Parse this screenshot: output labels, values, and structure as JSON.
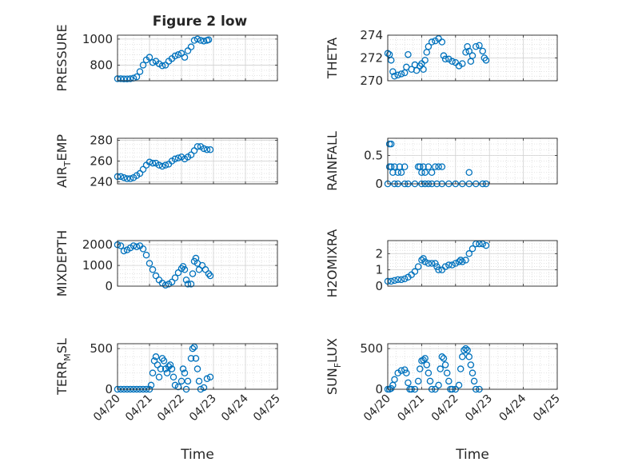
{
  "figure": {
    "title": "Figure 2 low",
    "marker_color": "#0072BD",
    "axis_color": "#262626",
    "grid_color": "#dcdcdc"
  },
  "chart_data": [
    {
      "type": "scatter",
      "id": "pressure",
      "title": "Figure 2 low",
      "ylabel": "PRESSURE",
      "ylabel_parts": [
        [
          "PRESSURE",
          ""
        ]
      ],
      "xlim": [
        "04/20",
        "04/25"
      ],
      "ylim": [
        680,
        1030
      ],
      "yticks": [
        800,
        1000
      ],
      "xticks": [
        "04/20",
        "04/21",
        "04/22",
        "04/23",
        "04/24",
        "04/25"
      ],
      "x_tick_labels_shown": false,
      "grid": true,
      "points": [
        [
          0.0,
          695
        ],
        [
          0.1,
          695
        ],
        [
          0.2,
          694
        ],
        [
          0.3,
          694
        ],
        [
          0.4,
          695
        ],
        [
          0.5,
          700
        ],
        [
          0.6,
          710
        ],
        [
          0.7,
          750
        ],
        [
          0.8,
          800
        ],
        [
          0.9,
          840
        ],
        [
          1.0,
          860
        ],
        [
          1.1,
          820
        ],
        [
          1.2,
          830
        ],
        [
          1.3,
          810
        ],
        [
          1.4,
          795
        ],
        [
          1.5,
          800
        ],
        [
          1.6,
          830
        ],
        [
          1.7,
          850
        ],
        [
          1.8,
          870
        ],
        [
          1.9,
          880
        ],
        [
          2.0,
          890
        ],
        [
          2.1,
          860
        ],
        [
          2.2,
          910
        ],
        [
          2.3,
          940
        ],
        [
          2.4,
          990
        ],
        [
          2.5,
          1000
        ],
        [
          2.6,
          990
        ],
        [
          2.7,
          985
        ],
        [
          2.8,
          990
        ],
        [
          2.85,
          995
        ]
      ]
    },
    {
      "type": "scatter",
      "id": "theta",
      "ylabel": "THETA",
      "ylabel_parts": [
        [
          "THETA",
          ""
        ]
      ],
      "xlim": [
        "04/20",
        "04/25"
      ],
      "ylim": [
        270,
        274
      ],
      "yticks": [
        270,
        272,
        274
      ],
      "xticks": [
        "04/20",
        "04/21",
        "04/22",
        "04/23",
        "04/24",
        "04/25"
      ],
      "x_tick_labels_shown": false,
      "grid": true,
      "points": [
        [
          0.0,
          272.4
        ],
        [
          0.05,
          272.3
        ],
        [
          0.1,
          271.8
        ],
        [
          0.15,
          270.8
        ],
        [
          0.2,
          270.4
        ],
        [
          0.3,
          270.5
        ],
        [
          0.4,
          270.6
        ],
        [
          0.5,
          270.7
        ],
        [
          0.55,
          271.2
        ],
        [
          0.6,
          272.3
        ],
        [
          0.7,
          271.0
        ],
        [
          0.8,
          271.4
        ],
        [
          0.85,
          270.9
        ],
        [
          0.95,
          271.3
        ],
        [
          1.0,
          271.5
        ],
        [
          1.05,
          271.0
        ],
        [
          1.1,
          271.8
        ],
        [
          1.15,
          272.5
        ],
        [
          1.2,
          273.0
        ],
        [
          1.3,
          273.4
        ],
        [
          1.4,
          273.5
        ],
        [
          1.5,
          273.7
        ],
        [
          1.6,
          273.4
        ],
        [
          1.65,
          272.2
        ],
        [
          1.7,
          271.9
        ],
        [
          1.8,
          271.9
        ],
        [
          1.9,
          271.7
        ],
        [
          2.0,
          271.6
        ],
        [
          2.1,
          271.3
        ],
        [
          2.2,
          271.5
        ],
        [
          2.3,
          272.5
        ],
        [
          2.35,
          273.0
        ],
        [
          2.4,
          272.6
        ],
        [
          2.45,
          271.7
        ],
        [
          2.5,
          272.2
        ],
        [
          2.6,
          273.0
        ],
        [
          2.7,
          273.1
        ],
        [
          2.8,
          272.6
        ],
        [
          2.85,
          272.0
        ],
        [
          2.9,
          271.8
        ]
      ]
    },
    {
      "type": "scatter",
      "id": "air_temp",
      "ylabel": "AIR_TEMP",
      "ylabel_parts": [
        [
          "AIR",
          ""
        ],
        [
          "T",
          "sub"
        ],
        [
          "EMP",
          ""
        ]
      ],
      "xlim": [
        "04/20",
        "04/25"
      ],
      "ylim": [
        238,
        282
      ],
      "yticks": [
        240,
        260,
        280
      ],
      "xticks": [
        "04/20",
        "04/21",
        "04/22",
        "04/23",
        "04/24",
        "04/25"
      ],
      "x_tick_labels_shown": false,
      "grid": true,
      "points": [
        [
          0.0,
          245
        ],
        [
          0.1,
          245
        ],
        [
          0.2,
          244
        ],
        [
          0.3,
          243
        ],
        [
          0.4,
          243
        ],
        [
          0.5,
          244
        ],
        [
          0.6,
          246
        ],
        [
          0.7,
          248
        ],
        [
          0.8,
          252
        ],
        [
          0.9,
          256
        ],
        [
          1.0,
          259
        ],
        [
          1.1,
          258
        ],
        [
          1.2,
          258
        ],
        [
          1.3,
          256
        ],
        [
          1.4,
          255
        ],
        [
          1.5,
          256
        ],
        [
          1.6,
          257
        ],
        [
          1.7,
          260
        ],
        [
          1.8,
          262
        ],
        [
          1.9,
          263
        ],
        [
          2.0,
          264
        ],
        [
          2.1,
          262
        ],
        [
          2.2,
          264
        ],
        [
          2.3,
          266
        ],
        [
          2.4,
          270
        ],
        [
          2.5,
          274
        ],
        [
          2.6,
          274
        ],
        [
          2.7,
          272
        ],
        [
          2.8,
          271
        ],
        [
          2.9,
          271
        ]
      ]
    },
    {
      "type": "scatter",
      "id": "rainfall",
      "ylabel": "RAINFALL",
      "ylabel_parts": [
        [
          "RAINFALL",
          ""
        ]
      ],
      "xlim": [
        "04/20",
        "04/25"
      ],
      "ylim": [
        0,
        0.8
      ],
      "yticks": [
        0,
        0.5
      ],
      "xticks": [
        "04/20",
        "04/21",
        "04/22",
        "04/23",
        "04/24",
        "04/25"
      ],
      "x_tick_labels_shown": false,
      "grid": true,
      "points": [
        [
          0.0,
          0.0
        ],
        [
          0.05,
          0.7
        ],
        [
          0.1,
          0.7
        ],
        [
          0.05,
          0.3
        ],
        [
          0.1,
          0.3
        ],
        [
          0.15,
          0.2
        ],
        [
          0.2,
          0.3
        ],
        [
          0.3,
          0.2
        ],
        [
          0.35,
          0.3
        ],
        [
          0.4,
          0.2
        ],
        [
          0.5,
          0.3
        ],
        [
          0.2,
          0.0
        ],
        [
          0.3,
          0.0
        ],
        [
          0.5,
          0.0
        ],
        [
          0.6,
          0.0
        ],
        [
          0.8,
          0.0
        ],
        [
          0.9,
          0.3
        ],
        [
          0.95,
          0.3
        ],
        [
          1.0,
          0.2
        ],
        [
          1.05,
          0.3
        ],
        [
          1.1,
          0.2
        ],
        [
          1.2,
          0.3
        ],
        [
          1.3,
          0.2
        ],
        [
          1.4,
          0.3
        ],
        [
          1.5,
          0.3
        ],
        [
          1.6,
          0.3
        ],
        [
          1.0,
          0.0
        ],
        [
          1.1,
          0.0
        ],
        [
          1.2,
          0.0
        ],
        [
          1.3,
          0.0
        ],
        [
          1.45,
          0.0
        ],
        [
          1.6,
          0.0
        ],
        [
          1.8,
          0.0
        ],
        [
          2.0,
          0.0
        ],
        [
          2.2,
          0.0
        ],
        [
          2.4,
          0.2
        ],
        [
          2.4,
          0.0
        ],
        [
          2.6,
          0.0
        ],
        [
          2.8,
          0.0
        ],
        [
          2.9,
          0.0
        ]
      ]
    },
    {
      "type": "scatter",
      "id": "mixdepth",
      "ylabel": "MIXDEPTH",
      "ylabel_parts": [
        [
          "MIXDEPTH",
          ""
        ]
      ],
      "xlim": [
        "04/20",
        "04/25"
      ],
      "ylim": [
        0,
        2200
      ],
      "yticks": [
        0,
        1000,
        2000
      ],
      "xticks": [
        "04/20",
        "04/21",
        "04/22",
        "04/23",
        "04/24",
        "04/25"
      ],
      "x_tick_labels_shown": false,
      "grid": true,
      "points": [
        [
          0.0,
          2000
        ],
        [
          0.1,
          1950
        ],
        [
          0.2,
          1700
        ],
        [
          0.3,
          1750
        ],
        [
          0.4,
          1850
        ],
        [
          0.5,
          1950
        ],
        [
          0.6,
          1900
        ],
        [
          0.7,
          1950
        ],
        [
          0.8,
          1800
        ],
        [
          0.9,
          1500
        ],
        [
          1.0,
          1100
        ],
        [
          1.1,
          800
        ],
        [
          1.2,
          500
        ],
        [
          1.3,
          300
        ],
        [
          1.4,
          150
        ],
        [
          1.5,
          50
        ],
        [
          1.6,
          100
        ],
        [
          1.7,
          200
        ],
        [
          1.8,
          400
        ],
        [
          1.9,
          650
        ],
        [
          2.0,
          850
        ],
        [
          2.05,
          950
        ],
        [
          2.1,
          800
        ],
        [
          2.15,
          300
        ],
        [
          2.2,
          100
        ],
        [
          2.3,
          100
        ],
        [
          2.35,
          600
        ],
        [
          2.4,
          1200
        ],
        [
          2.45,
          1350
        ],
        [
          2.5,
          1100
        ],
        [
          2.55,
          800
        ],
        [
          2.65,
          1000
        ],
        [
          2.75,
          800
        ],
        [
          2.85,
          600
        ],
        [
          2.9,
          500
        ]
      ]
    },
    {
      "type": "scatter",
      "id": "h2omixra",
      "ylabel": "H2OMIXRA",
      "ylabel_parts": [
        [
          "H2OMIXRA",
          ""
        ]
      ],
      "xlim": [
        "04/20",
        "04/25"
      ],
      "ylim": [
        0,
        2.8
      ],
      "yticks": [
        0,
        1,
        2
      ],
      "xticks": [
        "04/20",
        "04/21",
        "04/22",
        "04/23",
        "04/24",
        "04/25"
      ],
      "x_tick_labels_shown": false,
      "grid": true,
      "points": [
        [
          0.0,
          0.3
        ],
        [
          0.1,
          0.3
        ],
        [
          0.2,
          0.35
        ],
        [
          0.3,
          0.4
        ],
        [
          0.4,
          0.4
        ],
        [
          0.5,
          0.45
        ],
        [
          0.6,
          0.55
        ],
        [
          0.7,
          0.7
        ],
        [
          0.8,
          0.9
        ],
        [
          0.9,
          1.2
        ],
        [
          1.0,
          1.6
        ],
        [
          1.05,
          1.7
        ],
        [
          1.1,
          1.5
        ],
        [
          1.2,
          1.4
        ],
        [
          1.3,
          1.4
        ],
        [
          1.4,
          1.4
        ],
        [
          1.45,
          1.2
        ],
        [
          1.5,
          1.0
        ],
        [
          1.6,
          1.0
        ],
        [
          1.7,
          1.2
        ],
        [
          1.8,
          1.3
        ],
        [
          1.9,
          1.3
        ],
        [
          2.0,
          1.4
        ],
        [
          2.1,
          1.5
        ],
        [
          2.15,
          1.6
        ],
        [
          2.2,
          1.5
        ],
        [
          2.3,
          1.6
        ],
        [
          2.4,
          2.0
        ],
        [
          2.5,
          2.3
        ],
        [
          2.6,
          2.6
        ],
        [
          2.7,
          2.6
        ],
        [
          2.8,
          2.6
        ],
        [
          2.9,
          2.5
        ]
      ]
    },
    {
      "type": "scatter",
      "id": "terr_msl",
      "ylabel": "TERR_MSL",
      "ylabel_parts": [
        [
          "TERR",
          ""
        ],
        [
          "M",
          "sub"
        ],
        [
          "SL",
          ""
        ]
      ],
      "xlabel": "Time",
      "xlim": [
        "04/20",
        "04/25"
      ],
      "ylim": [
        0,
        560
      ],
      "yticks": [
        0,
        500
      ],
      "xticks": [
        "04/20",
        "04/21",
        "04/22",
        "04/23",
        "04/24",
        "04/25"
      ],
      "x_tick_labels_shown": true,
      "grid": true,
      "points": [
        [
          0.0,
          0
        ],
        [
          0.1,
          0
        ],
        [
          0.2,
          0
        ],
        [
          0.3,
          0
        ],
        [
          0.4,
          0
        ],
        [
          0.5,
          0
        ],
        [
          0.6,
          0
        ],
        [
          0.7,
          0
        ],
        [
          0.8,
          0
        ],
        [
          0.9,
          0
        ],
        [
          1.0,
          0
        ],
        [
          1.05,
          50
        ],
        [
          1.1,
          200
        ],
        [
          1.15,
          350
        ],
        [
          1.2,
          400
        ],
        [
          1.25,
          300
        ],
        [
          1.3,
          150
        ],
        [
          1.35,
          250
        ],
        [
          1.4,
          380
        ],
        [
          1.45,
          350
        ],
        [
          1.5,
          250
        ],
        [
          1.55,
          200
        ],
        [
          1.6,
          280
        ],
        [
          1.65,
          300
        ],
        [
          1.7,
          250
        ],
        [
          1.75,
          150
        ],
        [
          1.8,
          50
        ],
        [
          1.9,
          30
        ],
        [
          2.0,
          100
        ],
        [
          2.05,
          250
        ],
        [
          2.1,
          200
        ],
        [
          2.15,
          0
        ],
        [
          2.2,
          100
        ],
        [
          2.3,
          380
        ],
        [
          2.35,
          500
        ],
        [
          2.4,
          520
        ],
        [
          2.45,
          380
        ],
        [
          2.5,
          250
        ],
        [
          2.55,
          100
        ],
        [
          2.6,
          0
        ],
        [
          2.7,
          20
        ],
        [
          2.8,
          130
        ],
        [
          2.9,
          150
        ]
      ]
    },
    {
      "type": "scatter",
      "id": "sun_flux",
      "ylabel": "SUN_FLUX",
      "ylabel_parts": [
        [
          "SUN",
          ""
        ],
        [
          "F",
          "sub"
        ],
        [
          "LUX",
          ""
        ]
      ],
      "xlabel": "Time",
      "xlim": [
        "04/20",
        "04/25"
      ],
      "ylim": [
        0,
        560
      ],
      "yticks": [
        0,
        500
      ],
      "xticks": [
        "04/20",
        "04/21",
        "04/22",
        "04/23",
        "04/24",
        "04/25"
      ],
      "x_tick_labels_shown": true,
      "grid": true,
      "points": [
        [
          0.0,
          0
        ],
        [
          0.05,
          0
        ],
        [
          0.1,
          10
        ],
        [
          0.15,
          50
        ],
        [
          0.2,
          120
        ],
        [
          0.3,
          200
        ],
        [
          0.4,
          230
        ],
        [
          0.5,
          240
        ],
        [
          0.55,
          200
        ],
        [
          0.6,
          80
        ],
        [
          0.65,
          0
        ],
        [
          0.7,
          0
        ],
        [
          0.8,
          0
        ],
        [
          0.9,
          100
        ],
        [
          0.95,
          250
        ],
        [
          1.0,
          350
        ],
        [
          1.05,
          360
        ],
        [
          1.1,
          380
        ],
        [
          1.15,
          300
        ],
        [
          1.2,
          200
        ],
        [
          1.25,
          100
        ],
        [
          1.3,
          0
        ],
        [
          1.4,
          0
        ],
        [
          1.5,
          50
        ],
        [
          1.55,
          250
        ],
        [
          1.6,
          400
        ],
        [
          1.65,
          380
        ],
        [
          1.7,
          300
        ],
        [
          1.75,
          200
        ],
        [
          1.8,
          100
        ],
        [
          1.85,
          0
        ],
        [
          1.9,
          0
        ],
        [
          2.0,
          0
        ],
        [
          2.1,
          50
        ],
        [
          2.15,
          250
        ],
        [
          2.2,
          400
        ],
        [
          2.25,
          480
        ],
        [
          2.3,
          500
        ],
        [
          2.35,
          480
        ],
        [
          2.4,
          400
        ],
        [
          2.45,
          300
        ],
        [
          2.5,
          200
        ],
        [
          2.55,
          100
        ],
        [
          2.6,
          0
        ],
        [
          2.7,
          0
        ]
      ]
    }
  ]
}
